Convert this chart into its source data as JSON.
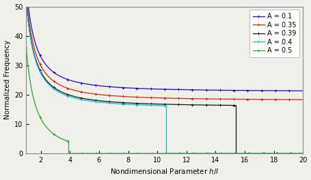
{
  "title": "",
  "xlabel": "Nondimensional Parameter $h/l$",
  "ylabel": "Normalized Frequency",
  "xlim": [
    1,
    20
  ],
  "ylim": [
    0,
    50
  ],
  "yticks": [
    0,
    10,
    20,
    30,
    40,
    50
  ],
  "xticks": [
    2,
    4,
    6,
    8,
    10,
    12,
    14,
    16,
    18,
    20
  ],
  "series": [
    {
      "label": "A = 0.1",
      "color": "#2200dd",
      "a": 36.0,
      "b": 1.6,
      "c": 21.0,
      "drop_x": null
    },
    {
      "label": "A = 0.35",
      "color": "#dd2200",
      "a": 36.0,
      "b": 1.6,
      "c": 18.0,
      "drop_x": null
    },
    {
      "label": "A = 0.39",
      "color": "#111111",
      "a": 36.0,
      "b": 1.6,
      "c": 15.9,
      "drop_x": 15.4
    },
    {
      "label": "A = 0.4",
      "color": "#00bbcc",
      "a": 36.0,
      "b": 1.6,
      "c": 15.4,
      "drop_x": 10.6
    },
    {
      "label": "A = 0.5",
      "color": "#22aa22",
      "a": 36.0,
      "b": 1.6,
      "c": 0.0,
      "drop_x": 3.9
    }
  ],
  "background_color": "#f0f0ea",
  "legend_fontsize": 7,
  "axis_fontsize": 7.5,
  "tick_fontsize": 7
}
